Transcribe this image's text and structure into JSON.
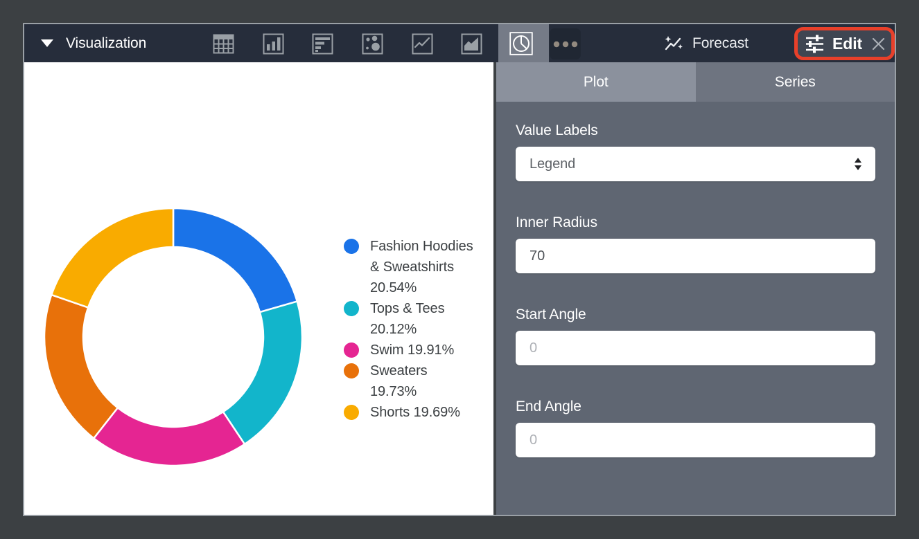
{
  "toolbar": {
    "title": "Visualization",
    "viz_types": [
      "table",
      "column",
      "bar",
      "scatter",
      "line",
      "area",
      "pie",
      "more-options"
    ],
    "selected_viz": "pie",
    "forecast_label": "Forecast",
    "edit_label": "Edit",
    "edit_highlight_color": "#E8402A"
  },
  "panel": {
    "tabs": [
      {
        "label": "Plot",
        "active": true
      },
      {
        "label": "Series",
        "active": false
      }
    ],
    "fields": [
      {
        "label": "Value Labels",
        "type": "select",
        "value": "Legend"
      },
      {
        "label": "Inner Radius",
        "type": "input",
        "value": "70"
      },
      {
        "label": "Start Angle",
        "type": "input",
        "placeholder": "0"
      },
      {
        "label": "End Angle",
        "type": "input",
        "placeholder": "0"
      }
    ]
  },
  "chart_data": {
    "type": "pie",
    "subtype": "donut",
    "labels": [
      "Fashion Hoodies & Sweatshirts",
      "Tops & Tees",
      "Swim",
      "Sweaters",
      "Shorts"
    ],
    "values": [
      20.54,
      20.12,
      19.91,
      19.73,
      19.69
    ],
    "display_values": [
      "20.54%",
      "20.12%",
      "19.91%",
      "19.73%",
      "19.69%"
    ],
    "colors": [
      "#1A73E8",
      "#12B5CB",
      "#E52592",
      "#E8710A",
      "#F9AB00"
    ],
    "inner_radius_pct": 70,
    "start_angle": 0,
    "end_angle": 0,
    "legend_position": "right",
    "slice_gap_color": "#FFFFFF"
  },
  "colors": {
    "frame_background": "#3C4043",
    "window_border": "#9AA0A6",
    "toolbar_background": "#262D3B",
    "panel_background": "#5F6672",
    "tab_active": "#8B919D",
    "tab_inactive": "#6E7480",
    "annotation_red": "#E8402A"
  }
}
